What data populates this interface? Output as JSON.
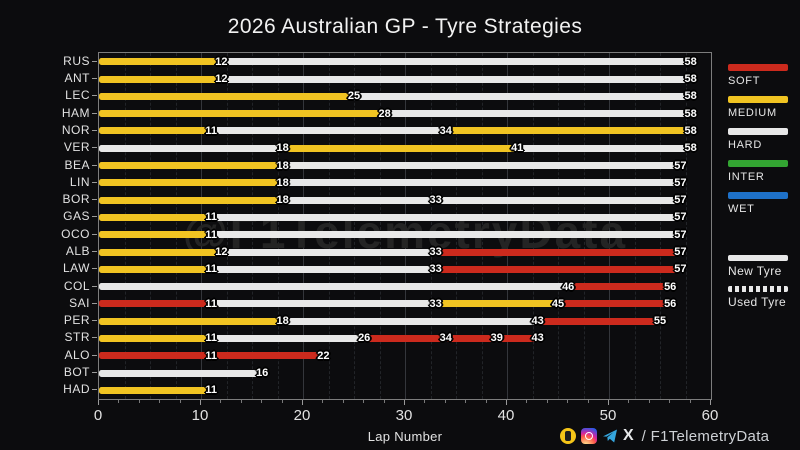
{
  "title": "2026 Australian GP - Tyre Strategies",
  "watermark": "@F1TelemetryData",
  "footer": {
    "icons": [
      "buymeacoffee-icon",
      "instagram-icon",
      "telegram-icon",
      "x-icon"
    ],
    "x_logo": "X",
    "handle": "/ F1TelemetryData"
  },
  "colors": {
    "background": "#0c0c0e",
    "soft": "#cc2a1d",
    "medium": "#f1c422",
    "hard": "#e8e8e8",
    "inter": "#33a532",
    "wet": "#1e71c8",
    "text": "#e2e2e2",
    "watermark": "#242424",
    "grid_major": "#34363b",
    "grid_minor": "#222428",
    "axis_border": "#7d7d7d"
  },
  "chart_data": {
    "type": "bar",
    "subtype": "horizontal-stacked-timeline",
    "title": "2026 Australian GP - Tyre Strategies",
    "xlabel": "Lap Number",
    "xlim": [
      0,
      60
    ],
    "x_major_ticks": [
      0,
      10,
      20,
      30,
      40,
      50,
      60
    ],
    "x_minor_tick_step": 2,
    "x_minor_grid_step": 2.5,
    "grid": "vertical-dashed-minor-plus-solid-major",
    "legend_position": "right",
    "legend": {
      "compounds": [
        {
          "id": "soft",
          "label": "SOFT"
        },
        {
          "id": "medium",
          "label": "MEDIUM"
        },
        {
          "id": "hard",
          "label": "HARD"
        },
        {
          "id": "inter",
          "label": "INTER"
        },
        {
          "id": "wet",
          "label": "WET"
        }
      ],
      "tyre_state": [
        {
          "label": "New Tyre",
          "style": "solid"
        },
        {
          "label": "Used Tyre",
          "style": "dashed"
        }
      ]
    },
    "drivers": [
      {
        "code": "RUS",
        "stints": [
          {
            "compound": "medium",
            "from": 0,
            "to": 12
          },
          {
            "compound": "hard",
            "from": 12,
            "to": 58
          }
        ]
      },
      {
        "code": "ANT",
        "stints": [
          {
            "compound": "medium",
            "from": 0,
            "to": 12
          },
          {
            "compound": "hard",
            "from": 12,
            "to": 58
          }
        ]
      },
      {
        "code": "LEC",
        "stints": [
          {
            "compound": "medium",
            "from": 0,
            "to": 25
          },
          {
            "compound": "hard",
            "from": 25,
            "to": 58
          }
        ]
      },
      {
        "code": "HAM",
        "stints": [
          {
            "compound": "medium",
            "from": 0,
            "to": 28
          },
          {
            "compound": "hard",
            "from": 28,
            "to": 58
          }
        ]
      },
      {
        "code": "NOR",
        "stints": [
          {
            "compound": "medium",
            "from": 0,
            "to": 11
          },
          {
            "compound": "hard",
            "from": 11,
            "to": 34
          },
          {
            "compound": "medium",
            "from": 34,
            "to": 58
          }
        ]
      },
      {
        "code": "VER",
        "stints": [
          {
            "compound": "hard",
            "from": 0,
            "to": 18
          },
          {
            "compound": "medium",
            "from": 18,
            "to": 41
          },
          {
            "compound": "hard",
            "from": 41,
            "to": 58
          }
        ]
      },
      {
        "code": "BEA",
        "stints": [
          {
            "compound": "medium",
            "from": 0,
            "to": 18
          },
          {
            "compound": "hard",
            "from": 18,
            "to": 57
          }
        ]
      },
      {
        "code": "LIN",
        "stints": [
          {
            "compound": "medium",
            "from": 0,
            "to": 18
          },
          {
            "compound": "hard",
            "from": 18,
            "to": 57
          }
        ]
      },
      {
        "code": "BOR",
        "stints": [
          {
            "compound": "medium",
            "from": 0,
            "to": 18
          },
          {
            "compound": "hard",
            "from": 18,
            "to": 33
          },
          {
            "compound": "hard",
            "from": 33,
            "to": 57
          }
        ]
      },
      {
        "code": "GAS",
        "stints": [
          {
            "compound": "medium",
            "from": 0,
            "to": 11
          },
          {
            "compound": "hard",
            "from": 11,
            "to": 57
          }
        ]
      },
      {
        "code": "OCO",
        "stints": [
          {
            "compound": "medium",
            "from": 0,
            "to": 11
          },
          {
            "compound": "hard",
            "from": 11,
            "to": 57
          }
        ]
      },
      {
        "code": "ALB",
        "stints": [
          {
            "compound": "medium",
            "from": 0,
            "to": 12
          },
          {
            "compound": "hard",
            "from": 12,
            "to": 33
          },
          {
            "compound": "soft",
            "from": 33,
            "to": 57
          }
        ]
      },
      {
        "code": "LAW",
        "stints": [
          {
            "compound": "medium",
            "from": 0,
            "to": 11
          },
          {
            "compound": "hard",
            "from": 11,
            "to": 33
          },
          {
            "compound": "soft",
            "from": 33,
            "to": 57
          }
        ]
      },
      {
        "code": "COL",
        "stints": [
          {
            "compound": "hard",
            "from": 0,
            "to": 46
          },
          {
            "compound": "soft",
            "from": 46,
            "to": 56
          }
        ]
      },
      {
        "code": "SAI",
        "stints": [
          {
            "compound": "soft",
            "from": 0,
            "to": 11
          },
          {
            "compound": "hard",
            "from": 11,
            "to": 33
          },
          {
            "compound": "medium",
            "from": 33,
            "to": 45
          },
          {
            "compound": "soft",
            "from": 45,
            "to": 56
          }
        ]
      },
      {
        "code": "PER",
        "stints": [
          {
            "compound": "medium",
            "from": 0,
            "to": 18
          },
          {
            "compound": "hard",
            "from": 18,
            "to": 43
          },
          {
            "compound": "soft",
            "from": 43,
            "to": 55
          }
        ]
      },
      {
        "code": "STR",
        "stints": [
          {
            "compound": "medium",
            "from": 0,
            "to": 11
          },
          {
            "compound": "hard",
            "from": 11,
            "to": 26
          },
          {
            "compound": "soft",
            "from": 26,
            "to": 34
          },
          {
            "compound": "soft",
            "from": 34,
            "to": 39
          },
          {
            "compound": "soft",
            "from": 39,
            "to": 43
          }
        ]
      },
      {
        "code": "ALO",
        "stints": [
          {
            "compound": "soft",
            "from": 0,
            "to": 11
          },
          {
            "compound": "soft",
            "from": 11,
            "to": 22
          }
        ]
      },
      {
        "code": "BOT",
        "stints": [
          {
            "compound": "hard",
            "from": 0,
            "to": 16
          }
        ]
      },
      {
        "code": "HAD",
        "stints": [
          {
            "compound": "medium",
            "from": 0,
            "to": 11
          }
        ]
      }
    ]
  }
}
